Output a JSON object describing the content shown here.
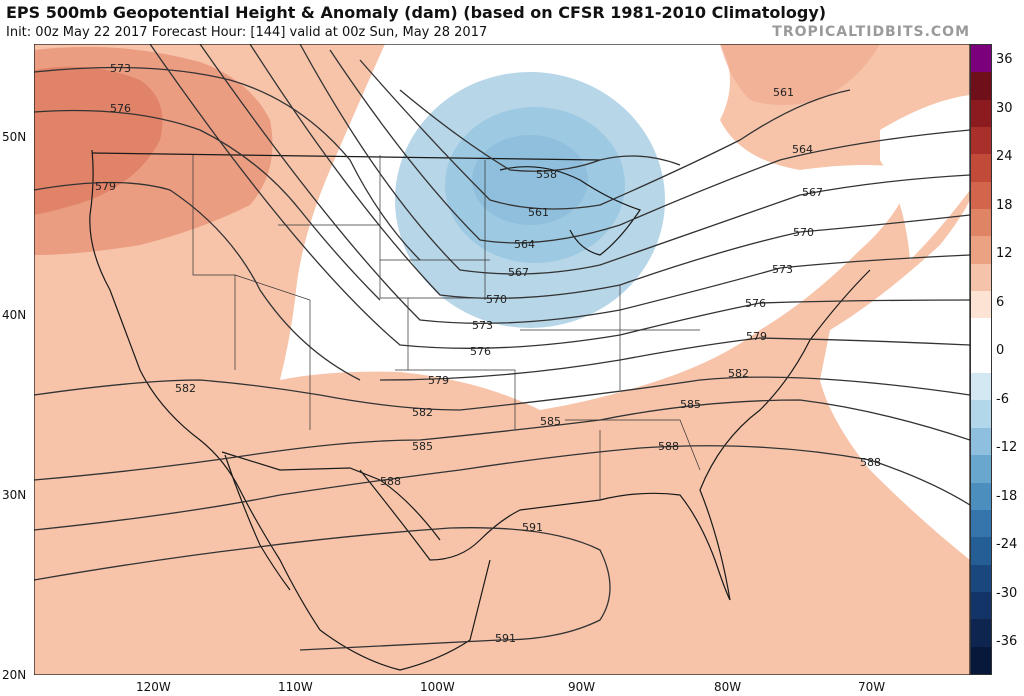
{
  "header": {
    "title": "EPS 500mb Geopotential Height & Anomaly (dam) (based on CFSR 1981-2010 Climatology)",
    "subtitle": "Init: 00z May 22 2017   Forecast Hour: [144]   valid at 00z Sun, May 28 2017",
    "brand": "TROPICALTIDBITS.COM"
  },
  "axes": {
    "lat_labels": [
      "50N",
      "40N",
      "30N",
      "20N"
    ],
    "lon_labels": [
      "120W",
      "110W",
      "100W",
      "90W",
      "80W",
      "70W"
    ]
  },
  "colorbar": {
    "labels": [
      "36",
      "30",
      "24",
      "18",
      "12",
      "6",
      "0",
      "-6",
      "-12",
      "-18",
      "-24",
      "-30",
      "-36"
    ],
    "colors": [
      "#7b007b",
      "#6e0f1a",
      "#8c1b20",
      "#a9302a",
      "#c24a38",
      "#d4654d",
      "#e08466",
      "#eba283",
      "#f5c3aa",
      "#fde3d3",
      "#ffffff",
      "#ffffff",
      "#d3e8f2",
      "#b2d6ea",
      "#8ebfde",
      "#6aa7cf",
      "#4c8ebe",
      "#3575ab",
      "#245e95",
      "#1a477d",
      "#133466",
      "#0e2550",
      "#08183b"
    ]
  },
  "contours": {
    "labels": [
      "573",
      "576",
      "579",
      "582",
      "585",
      "588",
      "591",
      "591",
      "558",
      "561",
      "564",
      "567",
      "570",
      "573",
      "576",
      "579",
      "582",
      "585",
      "588",
      "561",
      "564",
      "567",
      "570",
      "573",
      "576",
      "579",
      "582",
      "585",
      "588"
    ]
  },
  "colors": {
    "positive_anomaly": "#f7c4aa",
    "strong_positive": "#e9977a",
    "negative_anomaly": "#b7d6e8",
    "strong_negative": "#8fbfdc"
  }
}
